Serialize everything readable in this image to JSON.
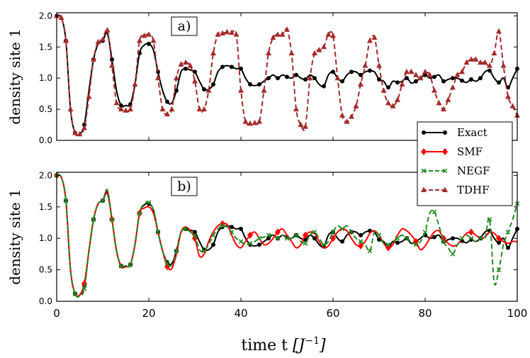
{
  "chart_data": [
    {
      "type": "line",
      "panel_label": "a)",
      "ylabel": "density site 1",
      "xlim": [
        0,
        100
      ],
      "ylim": [
        0,
        2.05
      ],
      "yticks": [
        "0.0",
        "0.5",
        "1.0",
        "1.5",
        "2.0"
      ],
      "yticks_values": [
        0,
        0.5,
        1.0,
        1.5,
        2.0
      ],
      "series": [
        {
          "name": "Exact",
          "color": "#000000",
          "dash": "solid",
          "marker": "circle",
          "x": [
            0,
            1,
            2,
            3,
            4,
            5,
            6,
            7,
            8,
            9,
            10,
            11,
            12,
            13,
            14,
            15,
            16,
            17,
            18,
            19,
            20,
            21,
            22,
            23,
            24,
            25,
            26,
            27,
            28,
            29,
            30,
            31,
            32,
            33,
            34,
            35,
            36,
            37,
            38,
            39,
            40,
            41,
            42,
            43,
            44,
            45,
            46,
            47,
            48,
            49,
            50,
            51,
            52,
            53,
            54,
            55,
            56,
            57,
            58,
            59,
            60,
            61,
            62,
            63,
            64,
            65,
            66,
            67,
            68,
            69,
            70,
            71,
            72,
            73,
            74,
            75,
            76,
            77,
            78,
            79,
            80,
            81,
            82,
            83,
            84,
            85,
            86,
            87,
            88,
            89,
            90,
            91,
            92,
            93,
            94,
            95,
            96,
            97,
            98,
            99,
            100
          ],
          "y": [
            2.0,
            1.97,
            1.6,
            0.5,
            0.12,
            0.1,
            0.25,
            0.8,
            1.3,
            1.55,
            1.6,
            1.72,
            1.3,
            0.8,
            0.56,
            0.56,
            0.58,
            0.9,
            1.4,
            1.53,
            1.55,
            1.45,
            1.1,
            0.8,
            0.62,
            0.6,
            0.8,
            1.1,
            1.15,
            1.13,
            1.1,
            0.95,
            0.82,
            0.82,
            0.9,
            1.1,
            1.18,
            1.2,
            1.18,
            1.15,
            1.15,
            1.0,
            0.9,
            0.88,
            0.9,
            0.95,
            1.0,
            1.05,
            1.0,
            1.05,
            1.02,
            1.0,
            1.05,
            1.0,
            0.98,
            1.05,
            1.0,
            0.9,
            0.87,
            1.05,
            1.1,
            1.0,
            0.95,
            1.05,
            1.1,
            1.1,
            1.05,
            1.1,
            1.12,
            1.1,
            0.98,
            0.95,
            0.85,
            0.95,
            0.93,
            0.95,
            1.0,
            0.92,
            0.95,
            1.0,
            1.05,
            1.0,
            1.02,
            1.05,
            0.95,
            0.98,
            1.0,
            1.0,
            0.96,
            0.93,
            0.98,
            0.95,
            1.0,
            1.1,
            1.12,
            1.0,
            0.93,
            1.0,
            0.85,
            1.0,
            1.15
          ]
        },
        {
          "name": "TDHF",
          "color": "#a52a2a",
          "dash": "dashed",
          "marker": "triangle",
          "x": [
            0,
            1,
            2,
            3,
            4,
            5,
            6,
            7,
            8,
            9,
            10,
            11,
            12,
            13,
            14,
            15,
            16,
            17,
            18,
            19,
            20,
            21,
            22,
            23,
            24,
            25,
            26,
            27,
            28,
            29,
            30,
            31,
            32,
            33,
            34,
            35,
            36,
            37,
            38,
            39,
            40,
            41,
            42,
            43,
            44,
            45,
            46,
            47,
            48,
            49,
            50,
            51,
            52,
            53,
            54,
            55,
            56,
            57,
            58,
            59,
            60,
            61,
            62,
            63,
            64,
            65,
            66,
            67,
            68,
            69,
            70,
            71,
            72,
            73,
            74,
            75,
            76,
            77,
            78,
            79,
            80,
            81,
            82,
            83,
            84,
            85,
            86,
            87,
            88,
            89,
            90,
            91,
            92,
            93,
            94,
            95,
            96,
            97,
            98,
            99,
            100
          ],
          "y": [
            2.0,
            1.97,
            1.6,
            0.5,
            0.12,
            0.1,
            0.2,
            0.7,
            1.3,
            1.58,
            1.62,
            1.77,
            1.2,
            0.6,
            0.5,
            0.48,
            0.5,
            0.9,
            1.6,
            1.68,
            1.7,
            1.6,
            1.0,
            0.5,
            0.42,
            0.5,
            1.0,
            1.22,
            1.25,
            1.2,
            0.95,
            0.5,
            0.5,
            0.8,
            1.4,
            1.7,
            1.72,
            1.74,
            1.73,
            1.7,
            0.8,
            0.3,
            0.27,
            0.28,
            0.3,
            0.8,
            1.4,
            1.65,
            1.7,
            1.7,
            1.78,
            1.4,
            0.5,
            0.25,
            0.22,
            1.0,
            1.4,
            1.45,
            1.5,
            1.7,
            1.68,
            1.0,
            0.4,
            0.3,
            0.38,
            0.55,
            0.9,
            1.2,
            1.6,
            1.65,
            1.2,
            0.8,
            0.6,
            0.55,
            0.65,
            0.9,
            1.1,
            1.1,
            1.05,
            1.0,
            1.1,
            1.05,
            0.8,
            0.6,
            0.5,
            0.65,
            0.85,
            1.05,
            1.1,
            1.25,
            1.3,
            1.3,
            1.25,
            1.25,
            1.2,
            1.4,
            1.75,
            1.2,
            0.7,
            0.55,
            0.4
          ]
        }
      ]
    },
    {
      "type": "line",
      "panel_label": "b)",
      "ylabel": "density site 1",
      "xlabel": "time t [J^-1]",
      "xlim": [
        0,
        100
      ],
      "ylim": [
        0,
        2.05
      ],
      "xticks": [
        "0",
        "20",
        "40",
        "60",
        "80",
        "100"
      ],
      "xticks_values": [
        0,
        20,
        40,
        60,
        80,
        100
      ],
      "yticks": [
        "0.0",
        "0.5",
        "1.0",
        "1.5",
        "2.0"
      ],
      "yticks_values": [
        0,
        0.5,
        1.0,
        1.5,
        2.0
      ],
      "series": [
        {
          "name": "Exact",
          "color": "#000000",
          "dash": "solid",
          "marker": "circle",
          "x": [
            0,
            1,
            2,
            3,
            4,
            5,
            6,
            7,
            8,
            9,
            10,
            11,
            12,
            13,
            14,
            15,
            16,
            17,
            18,
            19,
            20,
            21,
            22,
            23,
            24,
            25,
            26,
            27,
            28,
            29,
            30,
            31,
            32,
            33,
            34,
            35,
            36,
            37,
            38,
            39,
            40,
            41,
            42,
            43,
            44,
            45,
            46,
            47,
            48,
            49,
            50,
            51,
            52,
            53,
            54,
            55,
            56,
            57,
            58,
            59,
            60,
            61,
            62,
            63,
            64,
            65,
            66,
            67,
            68,
            69,
            70,
            71,
            72,
            73,
            74,
            75,
            76,
            77,
            78,
            79,
            80,
            81,
            82,
            83,
            84,
            85,
            86,
            87,
            88,
            89,
            90,
            91,
            92,
            93,
            94,
            95,
            96,
            97,
            98,
            99,
            100
          ],
          "y": [
            2.0,
            1.97,
            1.6,
            0.5,
            0.12,
            0.1,
            0.25,
            0.8,
            1.3,
            1.55,
            1.6,
            1.72,
            1.3,
            0.8,
            0.56,
            0.56,
            0.58,
            0.9,
            1.4,
            1.53,
            1.55,
            1.45,
            1.1,
            0.8,
            0.62,
            0.6,
            0.8,
            1.1,
            1.15,
            1.13,
            1.1,
            0.95,
            0.82,
            0.82,
            0.9,
            1.1,
            1.18,
            1.2,
            1.18,
            1.15,
            1.15,
            1.0,
            0.9,
            0.88,
            0.9,
            0.95,
            1.0,
            1.05,
            1.0,
            1.05,
            1.02,
            1.0,
            1.05,
            1.0,
            0.98,
            1.05,
            1.0,
            0.9,
            0.87,
            1.05,
            1.1,
            1.0,
            0.95,
            1.05,
            1.1,
            1.1,
            1.05,
            1.1,
            1.12,
            1.1,
            0.98,
            0.95,
            0.85,
            0.95,
            0.93,
            0.95,
            1.0,
            0.92,
            0.95,
            1.0,
            1.05,
            1.0,
            1.02,
            1.05,
            0.95,
            0.98,
            1.0,
            1.0,
            0.96,
            0.93,
            0.98,
            0.95,
            1.0,
            1.1,
            1.12,
            1.0,
            0.93,
            1.0,
            0.85,
            1.0,
            1.15
          ]
        },
        {
          "name": "SMF",
          "color": "#ff0000",
          "dash": "solid",
          "marker": "diamond",
          "x": [
            0,
            1,
            2,
            3,
            4,
            5,
            6,
            7,
            8,
            9,
            10,
            11,
            12,
            13,
            14,
            15,
            16,
            17,
            18,
            19,
            20,
            21,
            22,
            23,
            24,
            25,
            26,
            27,
            28,
            29,
            30,
            31,
            32,
            33,
            34,
            35,
            36,
            37,
            38,
            39,
            40,
            41,
            42,
            43,
            44,
            45,
            46,
            47,
            48,
            49,
            50,
            51,
            52,
            53,
            54,
            55,
            56,
            57,
            58,
            59,
            60,
            61,
            62,
            63,
            64,
            65,
            66,
            67,
            68,
            69,
            70,
            71,
            72,
            73,
            74,
            75,
            76,
            77,
            78,
            79,
            80,
            81,
            82,
            83,
            84,
            85,
            86,
            87,
            88,
            89,
            90,
            91,
            92,
            93,
            94,
            95,
            96,
            97,
            98,
            99,
            100
          ],
          "y": [
            2.0,
            1.97,
            1.6,
            0.5,
            0.12,
            0.1,
            0.28,
            0.8,
            1.3,
            1.55,
            1.6,
            1.75,
            1.3,
            0.8,
            0.55,
            0.55,
            0.58,
            0.9,
            1.4,
            1.48,
            1.5,
            1.4,
            1.1,
            0.8,
            0.55,
            0.52,
            0.75,
            1.1,
            1.18,
            1.12,
            1.0,
            0.72,
            0.75,
            0.95,
            1.1,
            1.2,
            1.23,
            1.22,
            1.05,
            0.9,
            0.85,
            0.95,
            1.05,
            1.1,
            1.0,
            0.9,
            0.92,
            1.0,
            1.1,
            1.15,
            1.05,
            0.95,
            0.85,
            0.9,
            1.05,
            1.1,
            1.08,
            0.95,
            0.85,
            0.88,
            1.0,
            1.1,
            1.15,
            1.12,
            1.0,
            0.9,
            0.88,
            0.95,
            1.08,
            1.12,
            1.05,
            0.92,
            0.85,
            0.9,
            1.05,
            1.15,
            1.12,
            1.05,
            0.95,
            0.82,
            0.88,
            1.0,
            1.1,
            1.12,
            1.0,
            0.92,
            0.88,
            0.9,
            1.0,
            1.08,
            1.1,
            1.05,
            1.0,
            1.02,
            1.1,
            1.08,
            1.0,
            0.95,
            0.92,
            0.95,
            0.95
          ]
        },
        {
          "name": "NEGF",
          "color": "#228b22",
          "dash": "dashed",
          "marker": "x",
          "x": [
            0,
            1,
            2,
            3,
            4,
            5,
            6,
            7,
            8,
            9,
            10,
            11,
            12,
            13,
            14,
            15,
            16,
            17,
            18,
            19,
            20,
            21,
            22,
            23,
            24,
            25,
            26,
            27,
            28,
            29,
            30,
            31,
            32,
            33,
            34,
            35,
            36,
            37,
            38,
            39,
            40,
            41,
            42,
            43,
            44,
            45,
            46,
            47,
            48,
            49,
            50,
            51,
            52,
            53,
            54,
            55,
            56,
            57,
            58,
            59,
            60,
            61,
            62,
            63,
            64,
            65,
            66,
            67,
            68,
            69,
            70,
            71,
            72,
            73,
            74,
            75,
            76,
            77,
            78,
            79,
            80,
            81,
            82,
            83,
            84,
            85,
            86,
            87,
            88,
            89,
            90,
            91,
            92,
            93,
            94,
            95,
            96,
            97,
            98,
            99,
            100
          ],
          "y": [
            2.0,
            1.97,
            1.6,
            0.5,
            0.12,
            0.08,
            0.2,
            0.8,
            1.3,
            1.55,
            1.6,
            1.77,
            1.3,
            0.8,
            0.56,
            0.56,
            0.58,
            0.9,
            1.4,
            1.55,
            1.57,
            1.45,
            1.1,
            0.8,
            0.6,
            0.58,
            0.8,
            1.1,
            1.15,
            1.1,
            1.05,
            0.82,
            0.8,
            0.9,
            1.05,
            1.15,
            1.2,
            1.18,
            1.1,
            1.0,
            0.95,
            0.9,
            0.92,
            0.95,
            1.0,
            1.02,
            1.05,
            1.05,
            1.0,
            1.05,
            1.0,
            1.0,
            1.05,
            0.95,
            0.92,
            1.05,
            1.1,
            1.0,
            0.9,
            0.95,
            1.1,
            1.2,
            1.15,
            1.2,
            1.1,
            1.0,
            0.95,
            0.9,
            0.8,
            1.1,
            1.05,
            0.92,
            0.9,
            0.95,
            1.0,
            1.05,
            1.0,
            0.95,
            0.9,
            0.95,
            1.1,
            1.4,
            1.42,
            1.2,
            0.95,
            0.85,
            0.75,
            0.9,
            1.0,
            1.05,
            1.0,
            0.95,
            1.0,
            1.0,
            1.3,
            0.3,
            0.5,
            0.9,
            1.1,
            1.3,
            1.55
          ]
        }
      ]
    }
  ],
  "legend": [
    {
      "label": "Exact",
      "color": "#000000",
      "dash": "solid",
      "marker": "circle"
    },
    {
      "label": "SMF",
      "color": "#ff0000",
      "dash": "solid",
      "marker": "diamond"
    },
    {
      "label": "NEGF",
      "color": "#228b22",
      "dash": "dashed",
      "marker": "x"
    },
    {
      "label": "TDHF",
      "color": "#a52a2a",
      "dash": "dashed",
      "marker": "triangle"
    }
  ]
}
